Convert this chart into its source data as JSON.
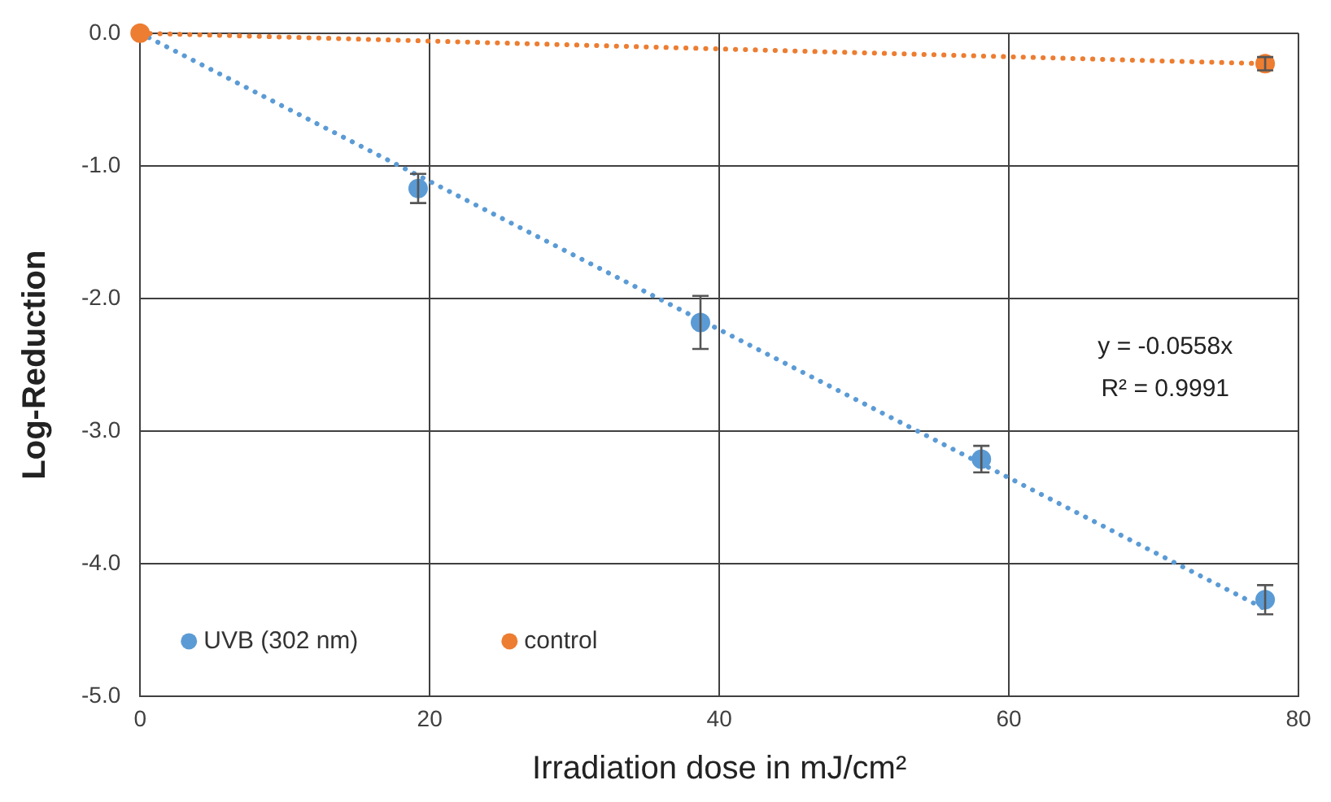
{
  "chart_data": {
    "type": "scatter",
    "xlabel": "Irradiation dose in mJ/cm²",
    "ylabel": "Log-Reduction",
    "xlim": [
      0,
      80
    ],
    "xticks": [
      0,
      20,
      40,
      60,
      80
    ],
    "ylim": [
      -5,
      0
    ],
    "yticks": [
      {
        "value": -5,
        "label": "-5.0"
      },
      {
        "value": -4,
        "label": "-4.0"
      },
      {
        "value": -3,
        "label": "-3.0"
      },
      {
        "value": -2,
        "label": "-2.0"
      },
      {
        "value": -1,
        "label": "-1.0"
      },
      {
        "value": 0,
        "label": "0.0"
      }
    ],
    "grid": true,
    "legend": "bottom left",
    "annotations": [
      "y = -0.0558x",
      "R² = 0.9991"
    ],
    "series": [
      {
        "name": "UVB (302 nm)",
        "color": "#5b9bd5",
        "marker": "circle",
        "x": [
          19.2,
          38.7,
          58.1,
          77.7
        ],
        "values": [
          -1.17,
          -2.18,
          -3.21,
          -4.27
        ],
        "errors": [
          0.11,
          0.2,
          0.1,
          0.11
        ]
      },
      {
        "name": "control",
        "color": "#ed7d31",
        "marker": "circle",
        "x": [
          0,
          77.7
        ],
        "values": [
          0,
          -0.23
        ],
        "errors": [
          null,
          0.05
        ]
      },
      {
        "type": "line",
        "color": "#5b9bd5",
        "x": [
          0,
          77.7
        ],
        "values": [
          0,
          -4.34
        ],
        "line_style": "dotted"
      },
      {
        "type": "line",
        "color": "#ed7d31",
        "x": [
          0,
          77.7
        ],
        "values": [
          0,
          -0.23
        ],
        "line_style": "dotted"
      }
    ]
  }
}
